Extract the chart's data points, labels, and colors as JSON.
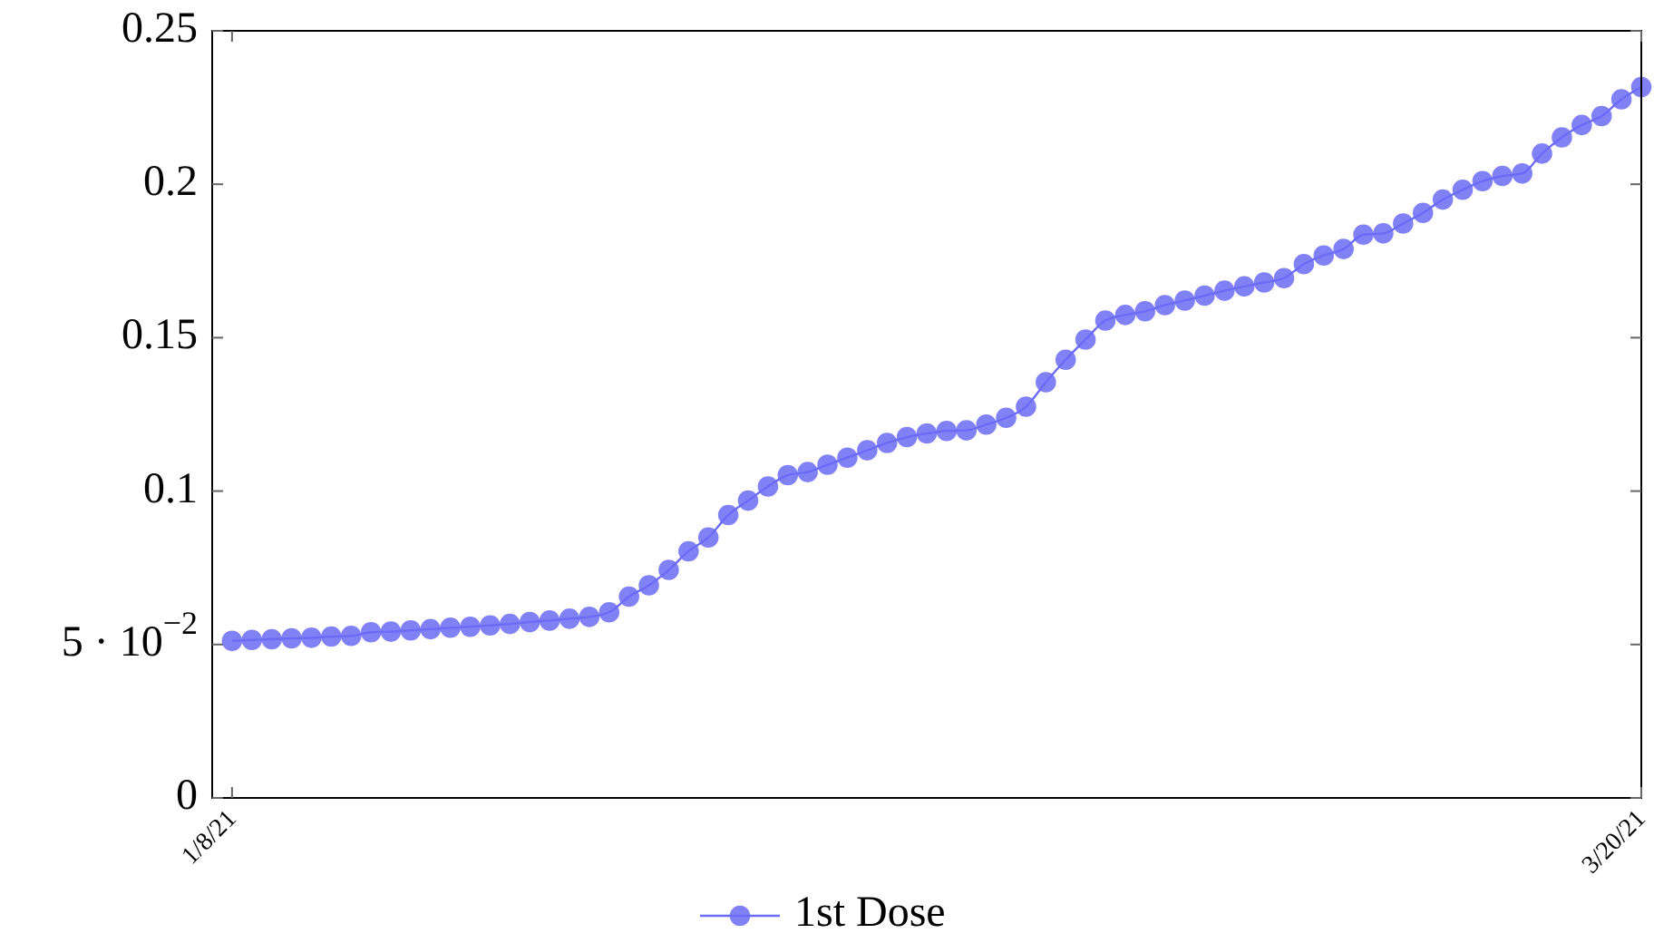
{
  "chart_data": {
    "type": "line",
    "x": [
      "2021-01-08",
      "2021-01-09",
      "2021-01-10",
      "2021-01-11",
      "2021-01-12",
      "2021-01-13",
      "2021-01-14",
      "2021-01-15",
      "2021-01-16",
      "2021-01-17",
      "2021-01-18",
      "2021-01-19",
      "2021-01-20",
      "2021-01-21",
      "2021-01-22",
      "2021-01-23",
      "2021-01-24",
      "2021-01-25",
      "2021-01-26",
      "2021-01-27",
      "2021-01-28",
      "2021-01-29",
      "2021-01-30",
      "2021-01-31",
      "2021-02-01",
      "2021-02-02",
      "2021-02-03",
      "2021-02-04",
      "2021-02-05",
      "2021-02-06",
      "2021-02-07",
      "2021-02-08",
      "2021-02-09",
      "2021-02-10",
      "2021-02-11",
      "2021-02-12",
      "2021-02-13",
      "2021-02-14",
      "2021-02-15",
      "2021-02-16",
      "2021-02-17",
      "2021-02-18",
      "2021-02-19",
      "2021-02-20",
      "2021-02-21",
      "2021-02-22",
      "2021-02-23",
      "2021-02-24",
      "2021-02-25",
      "2021-02-26",
      "2021-02-27",
      "2021-02-28",
      "2021-03-01",
      "2021-03-02",
      "2021-03-03",
      "2021-03-04",
      "2021-03-05",
      "2021-03-06",
      "2021-03-07",
      "2021-03-08",
      "2021-03-09",
      "2021-03-10",
      "2021-03-11",
      "2021-03-12",
      "2021-03-13",
      "2021-03-14",
      "2021-03-15",
      "2021-03-16",
      "2021-03-17",
      "2021-03-18",
      "2021-03-19",
      "2021-03-20"
    ],
    "series": [
      {
        "name": "1st Dose",
        "color": "#6b6bf5",
        "values": [
          0.0512,
          0.0515,
          0.0517,
          0.052,
          0.0522,
          0.0526,
          0.0528,
          0.054,
          0.0542,
          0.0546,
          0.055,
          0.0555,
          0.0558,
          0.0562,
          0.0567,
          0.0573,
          0.0578,
          0.0584,
          0.059,
          0.0605,
          0.0656,
          0.0693,
          0.0743,
          0.0804,
          0.0849,
          0.0922,
          0.0969,
          0.1015,
          0.1052,
          0.1062,
          0.1086,
          0.1109,
          0.1133,
          0.1157,
          0.1176,
          0.1188,
          0.1196,
          0.1198,
          0.1217,
          0.1239,
          0.1275,
          0.1355,
          0.1428,
          0.1494,
          0.1556,
          0.1574,
          0.1586,
          0.1606,
          0.1621,
          0.1637,
          0.1653,
          0.1667,
          0.168,
          0.1694,
          0.174,
          0.1768,
          0.1789,
          0.1836,
          0.184,
          0.1872,
          0.1907,
          0.195,
          0.1982,
          0.201,
          0.2027,
          0.2035,
          0.21,
          0.2153,
          0.2193,
          0.2222,
          0.2277,
          0.2317
        ]
      }
    ],
    "xlim": [
      "2021-01-07",
      "2021-03-20"
    ],
    "xticks": [
      {
        "value": "2021-01-08",
        "label": "1/8/21"
      },
      {
        "value": "2021-03-20",
        "label": "3/20/21"
      }
    ],
    "ylim": [
      0,
      0.25
    ],
    "yticks": [
      0,
      {
        "value": 0.05,
        "label": "5 · 10$^{−2}$"
      },
      0.1,
      0.15,
      0.2,
      0.25
    ],
    "grid": false,
    "legend": "bottom",
    "marker": "circle",
    "line_style": "solid"
  }
}
